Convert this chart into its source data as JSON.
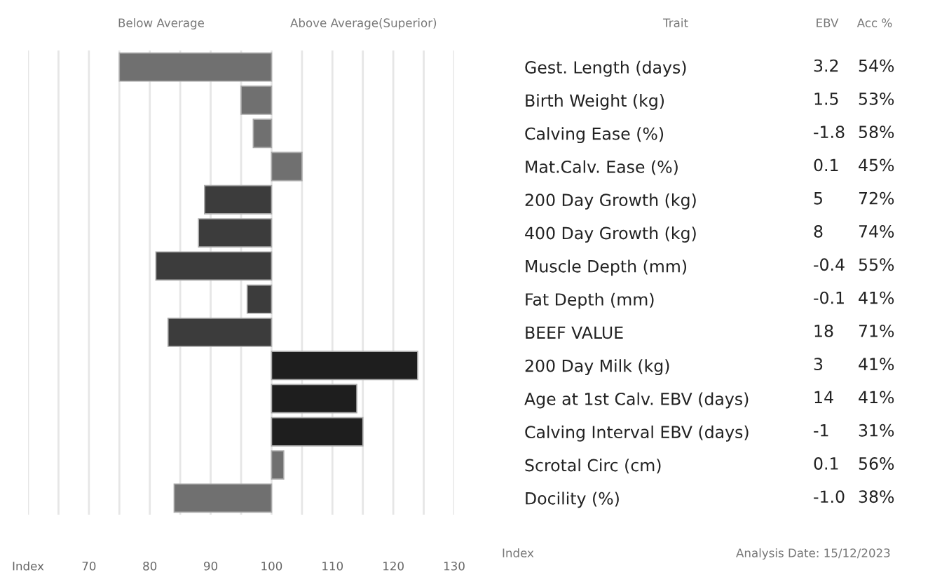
{
  "chart_data": {
    "type": "bar",
    "orientation": "horizontal",
    "categories": [
      "Gest. Length (days)",
      "Birth Weight (kg)",
      "Calving Ease (%)",
      "Mat.Calv. Ease (%)",
      "200 Day Growth (kg)",
      "400 Day Growth (kg)",
      "Muscle Depth (mm)",
      "Fat Depth (mm)",
      "BEEF VALUE",
      "200 Day Milk (kg)",
      "Age at 1st Calv. EBV (days)",
      "Calving Interval EBV (days)",
      "Scrotal Circ (cm)",
      "Docility (%)"
    ],
    "base": [
      100,
      100,
      100,
      100,
      100,
      100,
      100,
      100,
      100,
      100,
      100,
      100,
      100,
      100
    ],
    "values": [
      -25,
      -5,
      -3,
      5,
      -11,
      -12,
      -19,
      -4,
      -17,
      24,
      14,
      15,
      2,
      -16
    ],
    "colors": [
      "#707070",
      "#707070",
      "#707070",
      "#707070",
      "#3c3c3c",
      "#3c3c3c",
      "#3c3c3c",
      "#3c3c3c",
      "#3c3c3c",
      "#1e1e1e",
      "#1e1e1e",
      "#1e1e1e",
      "#707070",
      "#707070"
    ],
    "xlim": [
      60,
      130
    ],
    "xticks": [
      {
        "value": 60,
        "label": "Index"
      },
      {
        "value": 65,
        "label": null
      },
      70,
      {
        "value": 75,
        "label": null
      },
      80,
      {
        "value": 85,
        "label": null
      },
      90,
      {
        "value": 95,
        "label": null
      },
      100,
      {
        "value": 105,
        "label": null
      },
      110,
      {
        "value": 115,
        "label": null
      },
      120,
      {
        "value": 125,
        "label": null
      },
      130
    ],
    "grid": "x",
    "annotations": [
      "Below Average",
      "Above Average(Superior)",
      "Trait",
      "EBV",
      "Acc %",
      "3.2",
      "54%",
      "1.5",
      "53%",
      "-1.8",
      "58%",
      "0.1",
      "45%",
      "5",
      "72%",
      "8",
      "74%",
      "-0.4",
      "55%",
      "-0.1",
      "41%",
      "18",
      "71%",
      "3",
      "41%",
      "14",
      "41%",
      "-1",
      "31%",
      "0.1",
      "56%",
      "-1.0",
      "38%",
      "Index",
      "Analysis Date: 15/12/2023"
    ]
  }
}
